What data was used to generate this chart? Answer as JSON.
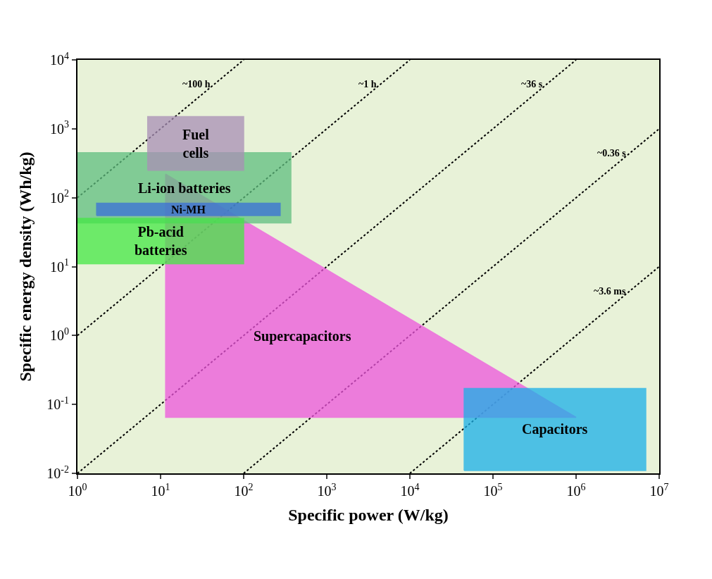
{
  "chart_data": {
    "type": "area",
    "xlabel": "Specific power (W/kg)",
    "ylabel": "Specific energy density (Wh/kg)",
    "log": "xy",
    "grid": false,
    "xlim": [
      1,
      10000000
    ],
    "ylim": [
      0.01,
      10000
    ],
    "xticks": [
      {
        "value": 1,
        "label": "10$^{0}$"
      },
      {
        "value": 10,
        "label": "10$^{1}$"
      },
      {
        "value": 100,
        "label": "10$^{2}$"
      },
      {
        "value": 1000,
        "label": "10$^{3}$"
      },
      {
        "value": 10000,
        "label": "10$^{4}$"
      },
      {
        "value": 100000,
        "label": "10$^{5}$"
      },
      {
        "value": 1000000,
        "label": "10$^{6}$"
      },
      {
        "value": 10000000,
        "label": "10$^{7}$"
      }
    ],
    "yticks": [
      {
        "value": 0.01,
        "label": "10$^{-2}$"
      },
      {
        "value": 0.1,
        "label": "10$^{-1}$"
      },
      {
        "value": 1,
        "label": "10$^{0}$"
      },
      {
        "value": 10,
        "label": "10$^{1}$"
      },
      {
        "value": 100,
        "label": "10$^{2}$"
      },
      {
        "value": 1000,
        "label": "10$^{3}$"
      },
      {
        "value": 10000,
        "label": "10$^{4}$"
      }
    ],
    "series": [
      {
        "type": "line",
        "name": "~100 h",
        "line_style": "dotted",
        "color": "#000000",
        "x": [
          1,
          100
        ],
        "values": [
          100,
          10000
        ]
      },
      {
        "type": "line",
        "name": "~1 h",
        "line_style": "dotted",
        "color": "#000000",
        "x": [
          1,
          10000
        ],
        "values": [
          1,
          10000
        ]
      },
      {
        "type": "line",
        "name": "~36 s",
        "line_style": "dotted",
        "color": "#000000",
        "x": [
          1,
          1000000
        ],
        "values": [
          0.01,
          10000
        ]
      },
      {
        "type": "line",
        "name": "~0.36 s",
        "line_style": "dotted",
        "color": "#000000",
        "x": [
          100,
          10000000
        ],
        "values": [
          0.01,
          1000
        ]
      },
      {
        "type": "line",
        "name": "~3.6 ms",
        "line_style": "dotted",
        "color": "#000000",
        "x": [
          10000,
          10000000
        ],
        "values": [
          0.01,
          10
        ]
      },
      {
        "name": "Supercapacitors",
        "color": "#ee55dd",
        "x": [
          11.5,
          11.5,
          1000000,
          11.5
        ],
        "values": [
          220,
          0.065,
          0.065,
          220
        ]
      },
      {
        "name": "Capacitors",
        "color": "#1ab0e8",
        "x": [
          45000,
          6900000,
          6900000,
          45000,
          45000
        ],
        "values": [
          0.011,
          0.011,
          0.17,
          0.17,
          0.011
        ]
      },
      {
        "name": "Li-ion batteries",
        "color": "#5fbf7f",
        "x": [
          1,
          370,
          370,
          1,
          1
        ],
        "values": [
          43,
          43,
          450,
          450,
          43
        ]
      },
      {
        "name": "Fuel\ncells",
        "color": "#a98fb6",
        "x": [
          7,
          100,
          100,
          7,
          7
        ],
        "values": [
          250,
          250,
          1500,
          1500,
          250
        ]
      },
      {
        "name": "Ni-MH",
        "color": "#3a6fd8",
        "x": [
          1.7,
          275,
          275,
          1.7,
          1.7
        ],
        "values": [
          55,
          55,
          83,
          83,
          55
        ]
      },
      {
        "name": "Pb-acid\nbatteries",
        "color": "#44e844",
        "x": [
          1,
          100,
          100,
          1,
          1
        ],
        "values": [
          11,
          11,
          50,
          50,
          11
        ]
      }
    ]
  }
}
